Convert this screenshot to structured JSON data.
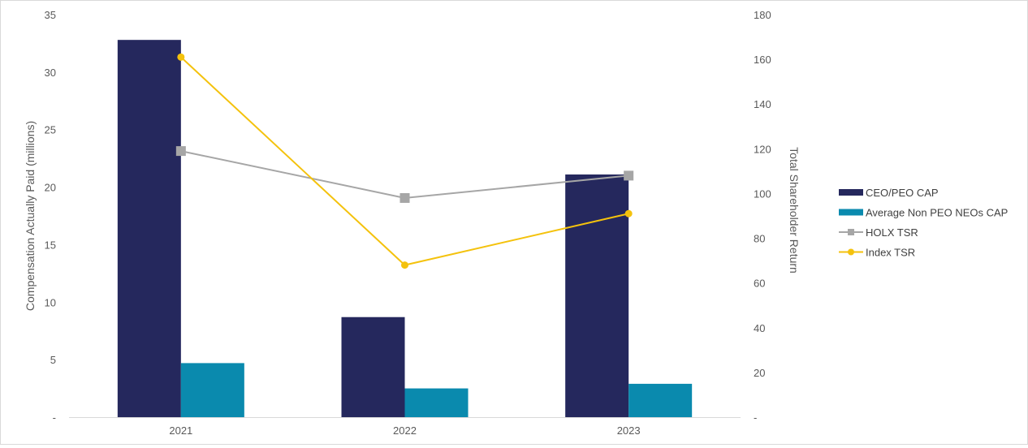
{
  "chart_data": {
    "type": "bar",
    "categories": [
      "2021",
      "2022",
      "2023"
    ],
    "title": "",
    "ylabel": "Compensation Actually Paid (millions)",
    "y2label": "Total Shareholder Return",
    "ylim": [
      0,
      35
    ],
    "y2lim": [
      0,
      180
    ],
    "yticks": [
      "-",
      "5",
      "10",
      "15",
      "20",
      "25",
      "30",
      "35"
    ],
    "y2ticks": [
      "-",
      "20",
      "40",
      "60",
      "80",
      "100",
      "120",
      "140",
      "160",
      "180"
    ],
    "legend_position": "right",
    "series": [
      {
        "name": "CEO/PEO CAP",
        "kind": "bar",
        "axis": "left",
        "color": "#25285d",
        "values": [
          32.8,
          8.7,
          21.1
        ]
      },
      {
        "name": "Average Non PEO NEOs CAP",
        "kind": "bar",
        "axis": "left",
        "color": "#0a8aae",
        "values": [
          4.7,
          2.5,
          2.9
        ]
      },
      {
        "name": "HOLX TSR",
        "kind": "line",
        "axis": "right",
        "color": "#a6a6a6",
        "marker": "square",
        "values": [
          119,
          98,
          108
        ]
      },
      {
        "name": "Index TSR",
        "kind": "line",
        "axis": "right",
        "color": "#f4c20d",
        "marker": "circle",
        "values": [
          161,
          68,
          91
        ]
      }
    ]
  }
}
